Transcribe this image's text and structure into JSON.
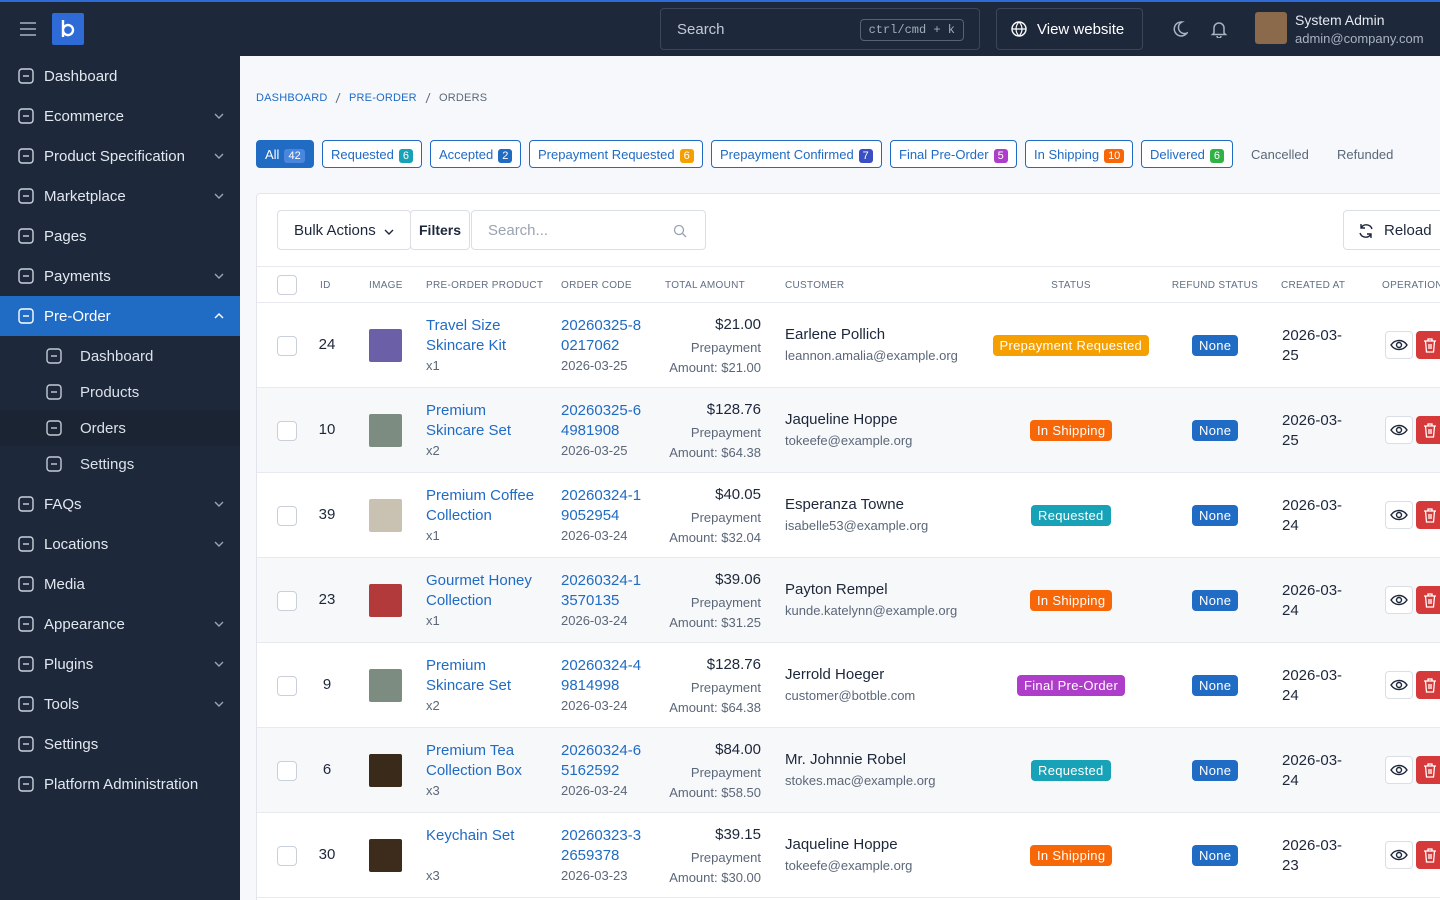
{
  "topbar": {
    "search_placeholder": "Search",
    "shortcut": "ctrl/cmd + k",
    "view_website": "View website",
    "user_name": "System Admin",
    "user_email": "admin@company.com"
  },
  "sidebar": {
    "items": [
      {
        "label": "Dashboard",
        "has_children": false
      },
      {
        "label": "Ecommerce",
        "has_children": true
      },
      {
        "label": "Product Specification",
        "has_children": true
      },
      {
        "label": "Marketplace",
        "has_children": true
      },
      {
        "label": "Pages",
        "has_children": false
      },
      {
        "label": "Payments",
        "has_children": true
      },
      {
        "label": "Pre-Order",
        "has_children": true,
        "active": true,
        "children": [
          {
            "label": "Dashboard"
          },
          {
            "label": "Products"
          },
          {
            "label": "Orders",
            "active": true
          },
          {
            "label": "Settings"
          }
        ]
      },
      {
        "label": "FAQs",
        "has_children": true
      },
      {
        "label": "Locations",
        "has_children": true
      },
      {
        "label": "Media",
        "has_children": false
      },
      {
        "label": "Appearance",
        "has_children": true
      },
      {
        "label": "Plugins",
        "has_children": true
      },
      {
        "label": "Tools",
        "has_children": true
      },
      {
        "label": "Settings",
        "has_children": false
      },
      {
        "label": "Platform Administration",
        "has_children": false
      }
    ]
  },
  "breadcrumb": [
    "DASHBOARD",
    "PRE-ORDER",
    "ORDERS"
  ],
  "tabs": [
    {
      "label": "All",
      "count": 42,
      "color": "#4a7fd6",
      "active": true
    },
    {
      "label": "Requested",
      "count": 6,
      "color": "#17a2b8"
    },
    {
      "label": "Accepted",
      "count": 2,
      "color": "#206bc4"
    },
    {
      "label": "Prepayment Requested",
      "count": 6,
      "color": "#f59f00"
    },
    {
      "label": "Prepayment Confirmed",
      "count": 7,
      "color": "#3b4fc4"
    },
    {
      "label": "Final Pre-Order",
      "count": 5,
      "color": "#ae3ec9"
    },
    {
      "label": "In Shipping",
      "count": 10,
      "color": "#f76707"
    },
    {
      "label": "Delivered",
      "count": 6,
      "color": "#2fb344"
    },
    {
      "label": "Cancelled"
    },
    {
      "label": "Refunded"
    }
  ],
  "toolbar": {
    "bulk_actions": "Bulk Actions",
    "filters": "Filters",
    "search_placeholder": "Search...",
    "reload": "Reload"
  },
  "table": {
    "columns": [
      "ID",
      "IMAGE",
      "PRE-ORDER PRODUCT",
      "ORDER CODE",
      "TOTAL AMOUNT",
      "CUSTOMER",
      "STATUS",
      "REFUND STATUS",
      "CREATED AT",
      "OPERATIONS"
    ],
    "rows": [
      {
        "id": "24",
        "image_color": "#6b5fa8",
        "product": "Travel Size Skincare Kit",
        "quantity": "x1",
        "order_code": "20260325-80217062",
        "order_date": "2026-03-25",
        "total": "$21.00",
        "prepayment": "Prepayment Amount: $21.00",
        "customer": "Earlene Pollich",
        "email": "leannon.amalia@example.org",
        "status": "Prepayment Requested",
        "status_color": "#f59f00",
        "refund_status": "None",
        "created_at": "2026-03-25"
      },
      {
        "id": "10",
        "image_color": "#7d8c80",
        "product": "Premium Skincare Set",
        "quantity": "x2",
        "order_code": "20260325-64981908",
        "order_date": "2026-03-25",
        "total": "$128.76",
        "prepayment": "Prepayment Amount: $64.38",
        "customer": "Jaqueline Hoppe",
        "email": "tokeefe@example.org",
        "status": "In Shipping",
        "status_color": "#f76707",
        "refund_status": "None",
        "created_at": "2026-03-25"
      },
      {
        "id": "39",
        "image_color": "#c9c2b2",
        "product": "Premium Coffee Collection",
        "quantity": "x1",
        "order_code": "20260324-19052954",
        "order_date": "2026-03-24",
        "total": "$40.05",
        "prepayment": "Prepayment Amount: $32.04",
        "customer": "Esperanza Towne",
        "email": "isabelle53@example.org",
        "status": "Requested",
        "status_color": "#17a2b8",
        "refund_status": "None",
        "created_at": "2026-03-24"
      },
      {
        "id": "23",
        "image_color": "#b23a3a",
        "product": "Gourmet Honey Collection",
        "quantity": "x1",
        "order_code": "20260324-13570135",
        "order_date": "2026-03-24",
        "total": "$39.06",
        "prepayment": "Prepayment Amount: $31.25",
        "customer": "Payton Rempel",
        "email": "kunde.katelynn@example.org",
        "status": "In Shipping",
        "status_color": "#f76707",
        "refund_status": "None",
        "created_at": "2026-03-24"
      },
      {
        "id": "9",
        "image_color": "#7d8c80",
        "product": "Premium Skincare Set",
        "quantity": "x2",
        "order_code": "20260324-49814998",
        "order_date": "2026-03-24",
        "total": "$128.76",
        "prepayment": "Prepayment Amount: $64.38",
        "customer": "Jerrold Hoeger",
        "email": "customer@botble.com",
        "status": "Final Pre-Order",
        "status_color": "#ae3ec9",
        "refund_status": "None",
        "created_at": "2026-03-24"
      },
      {
        "id": "6",
        "image_color": "#3a2a1a",
        "product": "Premium Tea Collection Box",
        "quantity": "x3",
        "order_code": "20260324-65162592",
        "order_date": "2026-03-24",
        "total": "$84.00",
        "prepayment": "Prepayment Amount: $58.50",
        "customer": "Mr. Johnnie Robel",
        "email": "stokes.mac@example.org",
        "status": "Requested",
        "status_color": "#17a2b8",
        "refund_status": "None",
        "created_at": "2026-03-24"
      },
      {
        "id": "30",
        "image_color": "#3d2c1c",
        "product": "Keychain Set",
        "quantity": "x3",
        "order_code": "20260323-32659378",
        "order_date": "2026-03-23",
        "total": "$39.15",
        "prepayment": "Prepayment Amount: $30.00",
        "customer": "Jaqueline Hoppe",
        "email": "tokeefe@example.org",
        "status": "In Shipping",
        "status_color": "#f76707",
        "refund_status": "None",
        "created_at": "2026-03-23"
      }
    ]
  }
}
